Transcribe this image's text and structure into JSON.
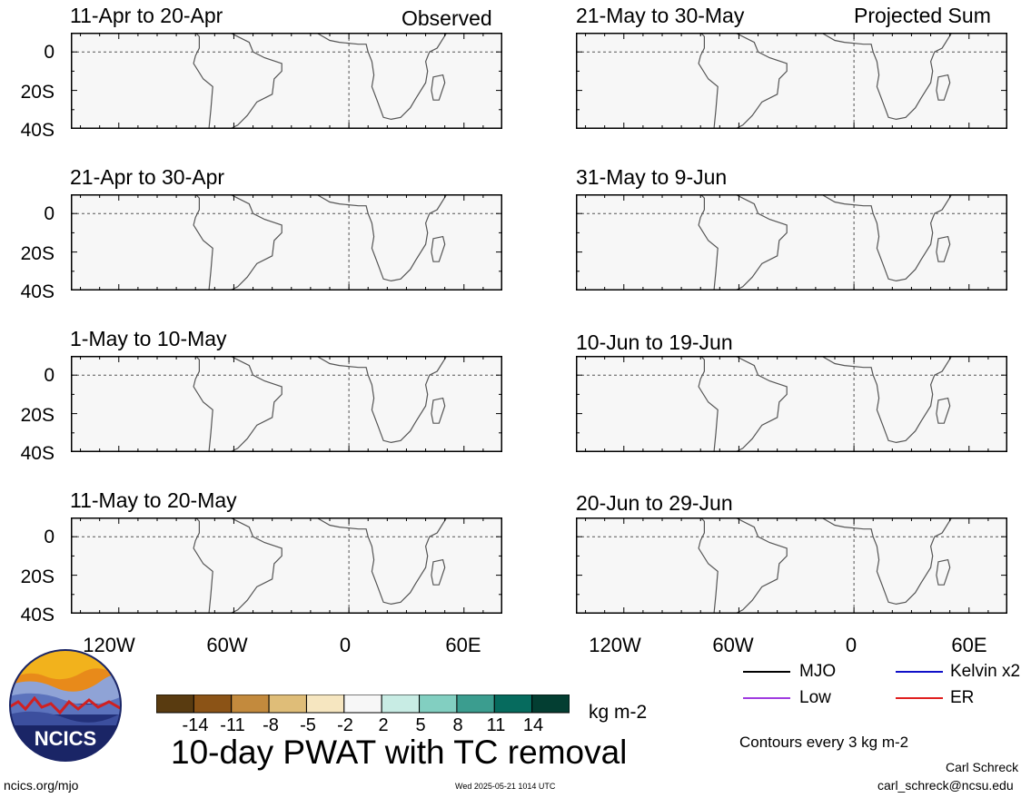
{
  "colors": {
    "scale": [
      "#593b10",
      "#8b5316",
      "#c38a3d",
      "#dfbd78",
      "#f6e6c0",
      "#f7f7f7",
      "#c8ece4",
      "#82cfc1",
      "#3b9d8f",
      "#066b5e",
      "#033e32"
    ],
    "land_line": "#555555",
    "mjo": "#000000",
    "low": "#a03ce0",
    "kelvin": "#1010c8",
    "er": "#e02020"
  },
  "labels": {
    "observed": "Observed",
    "projected": "Projected Sum"
  },
  "panels_left": [
    {
      "title": "11-Apr to 20-Apr"
    },
    {
      "title": "21-Apr to 30-Apr"
    },
    {
      "title": "1-May to 10-May"
    },
    {
      "title": "11-May to 20-May"
    }
  ],
  "panels_right": [
    {
      "title": "21-May to 30-May"
    },
    {
      "title": "31-May to 9-Jun"
    },
    {
      "title": "10-Jun to 19-Jun"
    },
    {
      "title": "20-Jun to 29-Jun"
    }
  ],
  "lat_labels": [
    "0",
    "20S",
    "40S"
  ],
  "lon_labels": [
    "120W",
    "60W",
    "0",
    "60E"
  ],
  "legend": {
    "mjo": "MJO",
    "kelvin": "Kelvin x2",
    "low": "Low",
    "er": "ER"
  },
  "colorbar": {
    "ticks": [
      "-14",
      "-11",
      "-8",
      "-5",
      "-2",
      "2",
      "5",
      "8",
      "11",
      "14"
    ],
    "units": "kg m-2"
  },
  "main_title": "10-day PWAT with TC removal",
  "contours_note": "Contours every 3 kg m-2",
  "author": "Carl Schreck",
  "email": "carl_schreck@ncsu.edu",
  "site": "ncics.org/mjo",
  "timestamp": "Wed 2025-05-21 1014 UTC",
  "logo_text": "NCICS"
}
